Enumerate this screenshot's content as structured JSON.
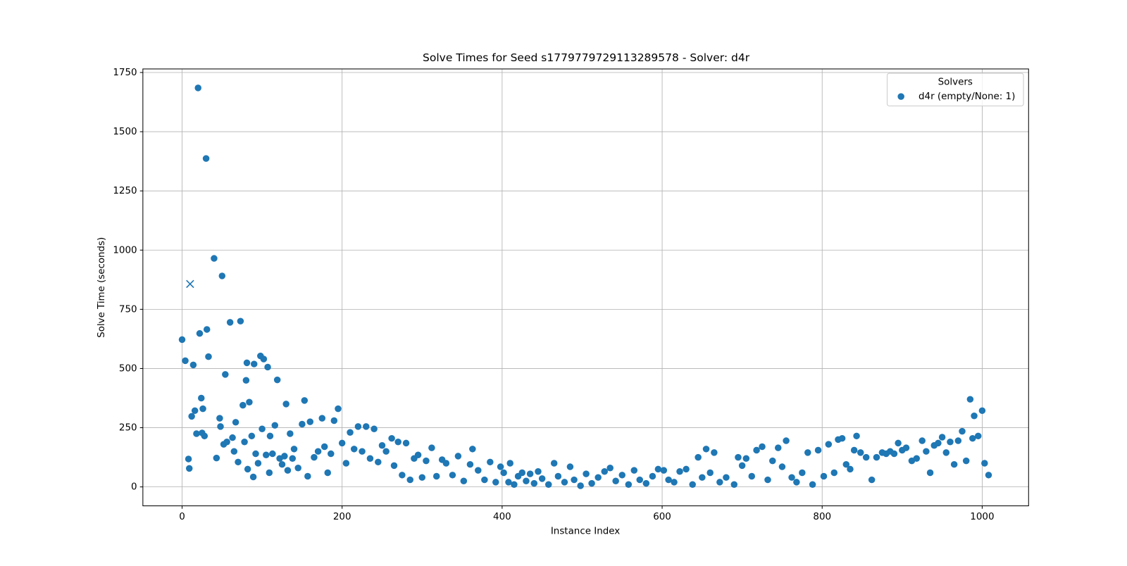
{
  "chart_data": {
    "type": "scatter",
    "title": "Solve Times for Seed s1779779729113289578 - Solver: d4r",
    "x_label": "Instance Index",
    "y_label": "Solve Time (seconds)",
    "legend_title": "Solvers",
    "legend_position": "upper right",
    "grid": true,
    "xlim": [
      -49,
      1058
    ],
    "ylim": [
      -80,
      1765
    ],
    "xticks": [
      0,
      200,
      400,
      600,
      800,
      1000
    ],
    "yticks": [
      0,
      250,
      500,
      750,
      1000,
      1250,
      1500,
      1750
    ],
    "series": [
      {
        "name": "d4r (empty/None: 1)",
        "color": "#1f77b4",
        "x": [
          0,
          4,
          8,
          9,
          12,
          14,
          16,
          18,
          20,
          22,
          24,
          25,
          26,
          28,
          30,
          31,
          33,
          40,
          43,
          47,
          48,
          50,
          52,
          54,
          56,
          60,
          63,
          65,
          67,
          70,
          73,
          76,
          78,
          80,
          81,
          82,
          84,
          87,
          89,
          90,
          92,
          95,
          98,
          100,
          102,
          105,
          107,
          109,
          110,
          113,
          116,
          119,
          122,
          125,
          128,
          130,
          132,
          135,
          138,
          140,
          145,
          150,
          153,
          157,
          160,
          165,
          170,
          175,
          178,
          182,
          186,
          190,
          195,
          200,
          205,
          210,
          215,
          220,
          225,
          230,
          235,
          240,
          245,
          250,
          255,
          262,
          265,
          270,
          275,
          280,
          285,
          290,
          295,
          300,
          305,
          312,
          318,
          325,
          330,
          338,
          345,
          352,
          360,
          363,
          370,
          378,
          385,
          392,
          398,
          402,
          408,
          410,
          415,
          420,
          425,
          430,
          435,
          440,
          445,
          450,
          458,
          465,
          470,
          478,
          485,
          490,
          498,
          505,
          512,
          520,
          528,
          535,
          542,
          550,
          558,
          565,
          572,
          580,
          588,
          595,
          602,
          608,
          615,
          622,
          630,
          638,
          645,
          650,
          655,
          660,
          665,
          672,
          680,
          690,
          695,
          700,
          705,
          712,
          718,
          725,
          732,
          738,
          745,
          750,
          755,
          762,
          768,
          775,
          782,
          788,
          795,
          802,
          808,
          815,
          820,
          825,
          830,
          835,
          840,
          843,
          848,
          855,
          862,
          868,
          875,
          880,
          885,
          890,
          895,
          900,
          905,
          912,
          918,
          925,
          930,
          935,
          940,
          945,
          950,
          955,
          960,
          965,
          970,
          975,
          980,
          985,
          988,
          990,
          995,
          1000,
          1003,
          1008
        ],
        "values": [
          622,
          533,
          118,
          78,
          298,
          515,
          322,
          225,
          1685,
          648,
          375,
          228,
          330,
          215,
          1387,
          665,
          550,
          965,
          122,
          290,
          255,
          891,
          180,
          475,
          190,
          695,
          208,
          150,
          273,
          105,
          700,
          345,
          190,
          450,
          524,
          75,
          358,
          215,
          42,
          519,
          140,
          100,
          553,
          245,
          540,
          135,
          506,
          60,
          215,
          140,
          260,
          452,
          120,
          95,
          130,
          350,
          70,
          225,
          120,
          160,
          80,
          265,
          365,
          45,
          275,
          125,
          150,
          290,
          170,
          60,
          140,
          280,
          330,
          185,
          100,
          230,
          160,
          255,
          150,
          255,
          120,
          245,
          105,
          175,
          150,
          205,
          90,
          190,
          50,
          185,
          30,
          120,
          135,
          40,
          110,
          165,
          45,
          115,
          100,
          50,
          130,
          25,
          95,
          160,
          70,
          30,
          105,
          20,
          85,
          60,
          20,
          100,
          10,
          45,
          60,
          25,
          55,
          15,
          65,
          35,
          10,
          100,
          45,
          20,
          85,
          30,
          5,
          55,
          15,
          40,
          65,
          80,
          25,
          50,
          10,
          70,
          30,
          15,
          45,
          75,
          70,
          30,
          20,
          65,
          75,
          10,
          125,
          40,
          160,
          60,
          145,
          20,
          40,
          10,
          125,
          90,
          120,
          45,
          155,
          170,
          30,
          110,
          165,
          85,
          195,
          40,
          20,
          60,
          145,
          10,
          155,
          45,
          180,
          60,
          200,
          205,
          95,
          75,
          155,
          215,
          145,
          125,
          30,
          125,
          145,
          140,
          150,
          140,
          185,
          155,
          165,
          110,
          120,
          195,
          150,
          60,
          175,
          185,
          210,
          145,
          190,
          95,
          195,
          235,
          110,
          370,
          205,
          300,
          215,
          322,
          100,
          50
        ]
      }
    ],
    "failed_points": {
      "marker": "x",
      "color": "#1f77b4",
      "x": [
        10
      ],
      "values": [
        857
      ]
    }
  }
}
